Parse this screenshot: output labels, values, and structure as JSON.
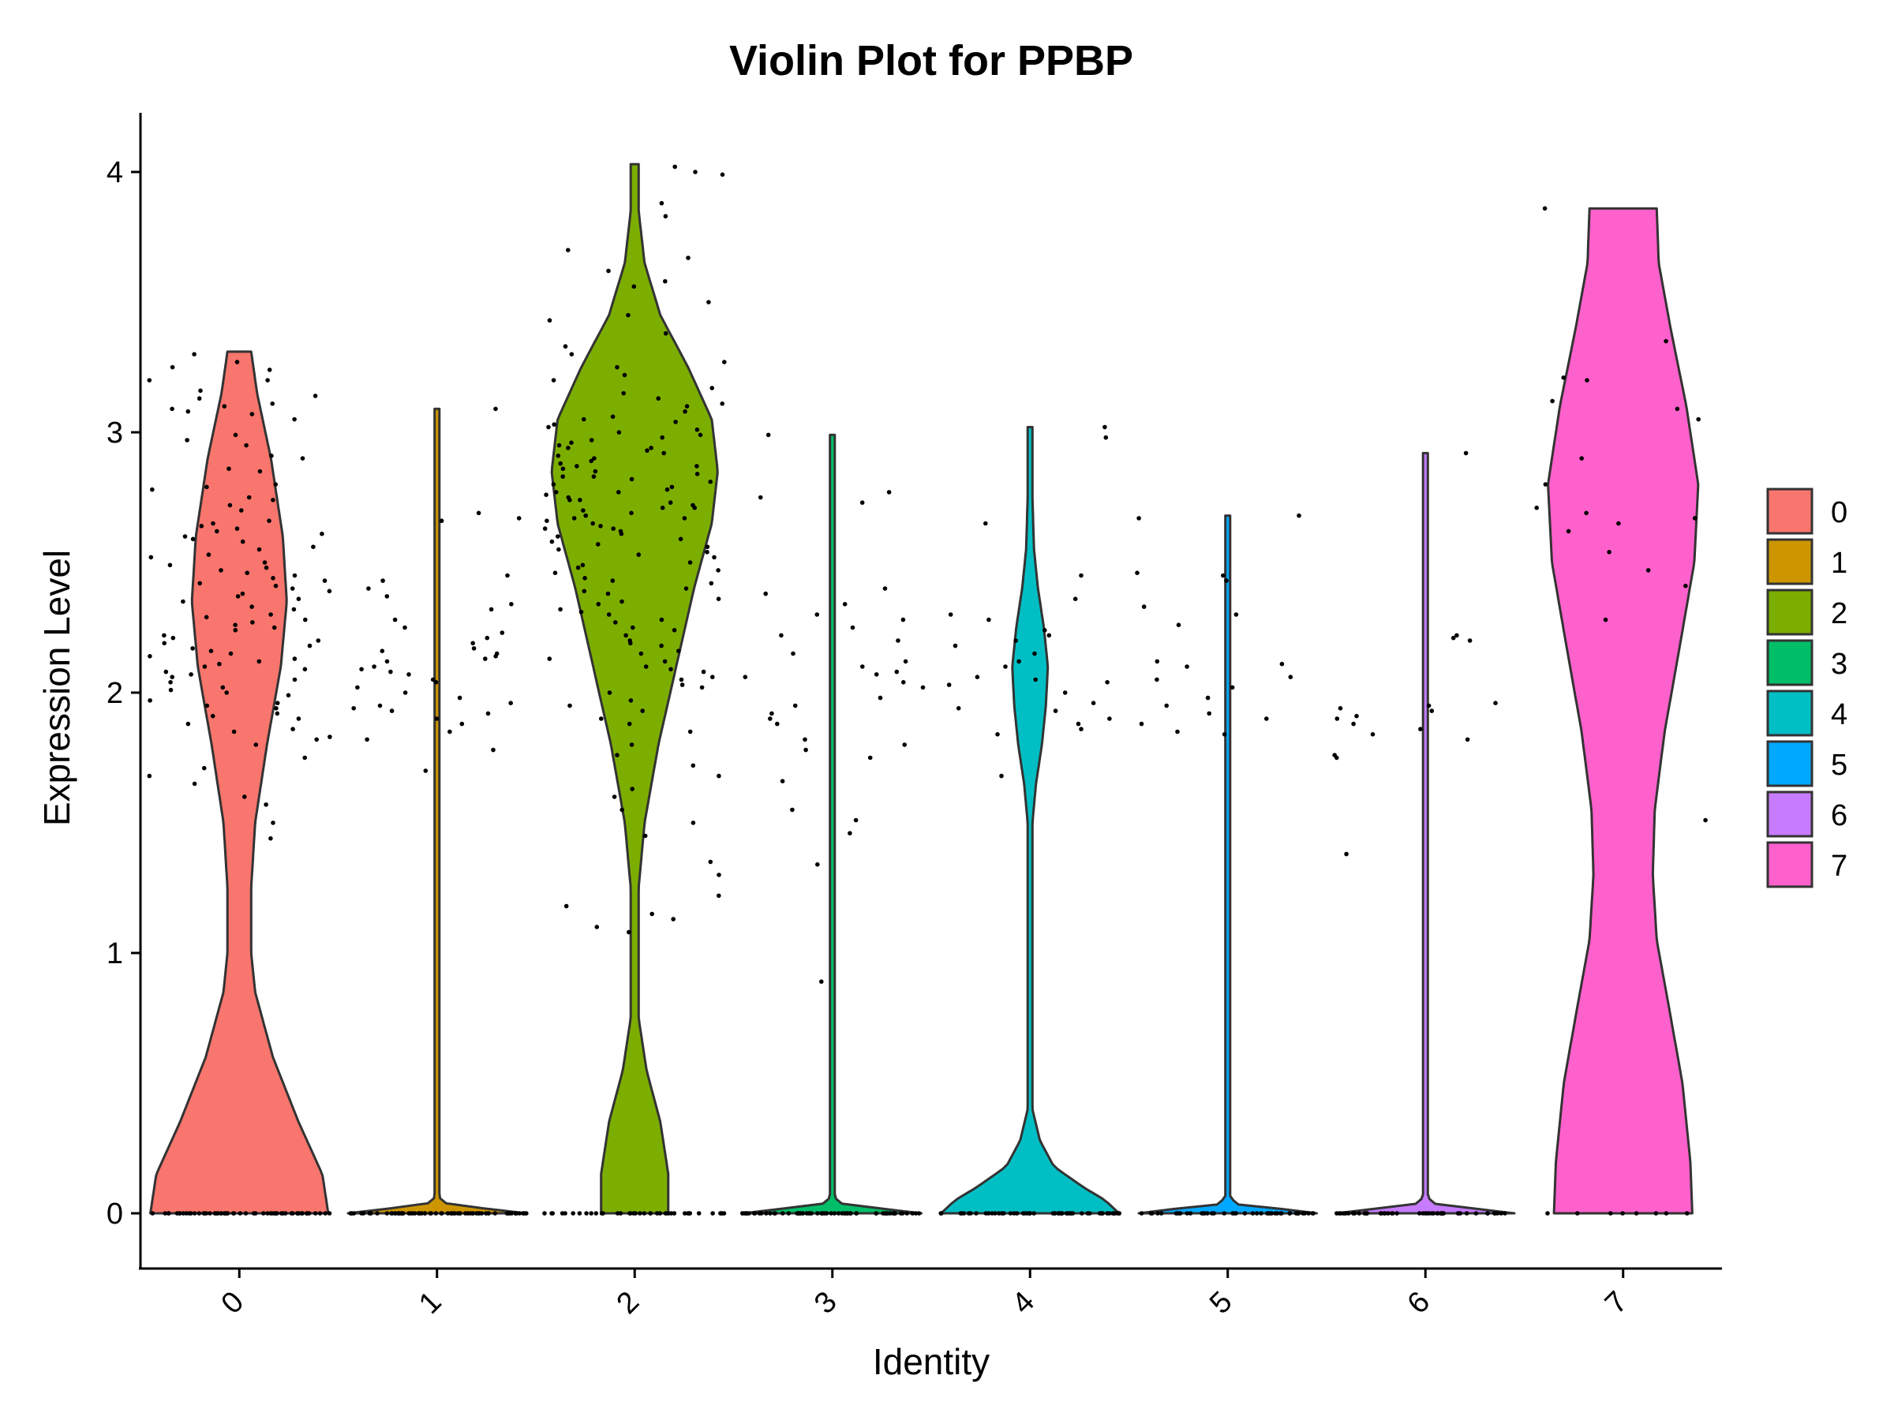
{
  "chart_data": {
    "type": "violin",
    "title": "Violin Plot for PPBP",
    "xlabel": "Identity",
    "ylabel": "Expression Level",
    "ylim": [
      -0.2,
      4.2
    ],
    "yticks": [
      "0",
      "1",
      "2",
      "3",
      "4"
    ],
    "grid": false,
    "legend_position": "right",
    "categories": [
      "0",
      "1",
      "2",
      "3",
      "4",
      "5",
      "6",
      "7"
    ],
    "colors": [
      "#F8766D",
      "#CD9600",
      "#7CAE00",
      "#00BE67",
      "#00BFC4",
      "#00A9FF",
      "#C77CFF",
      "#FF61CC"
    ],
    "series": [
      {
        "name": "0",
        "max": 3.31,
        "zero_count": 60,
        "profile": [
          [
            0,
            0.45
          ],
          [
            0.15,
            0.42
          ],
          [
            0.35,
            0.3
          ],
          [
            0.6,
            0.17
          ],
          [
            0.85,
            0.08
          ],
          [
            1.0,
            0.06
          ],
          [
            1.25,
            0.06
          ],
          [
            1.5,
            0.08
          ],
          [
            1.8,
            0.14
          ],
          [
            2.1,
            0.21
          ],
          [
            2.35,
            0.24
          ],
          [
            2.6,
            0.22
          ],
          [
            2.9,
            0.16
          ],
          [
            3.15,
            0.09
          ],
          [
            3.31,
            0.06
          ]
        ],
        "expressed": [
          3.3,
          3.25,
          3.24,
          3.2,
          3.16,
          3.13,
          3.1,
          3.08,
          3.05,
          2.99,
          2.95,
          2.9,
          2.85,
          2.8,
          2.78,
          2.75,
          2.72,
          2.7,
          2.66,
          2.64,
          2.63,
          2.61,
          2.6,
          2.58,
          2.56,
          2.55,
          2.52,
          2.5,
          2.48,
          2.47,
          2.45,
          2.44,
          2.42,
          2.4,
          2.39,
          2.37,
          2.35,
          2.33,
          2.3,
          2.28,
          2.27,
          2.25,
          2.22,
          2.2,
          2.19,
          2.17,
          2.15,
          2.13,
          2.1,
          2.09,
          2.07,
          2.05,
          2.02,
          2.0,
          1.97,
          1.95,
          1.92,
          1.9,
          1.86,
          1.83,
          1.8,
          1.75,
          1.71,
          1.68,
          1.65,
          1.6,
          1.57,
          1.5,
          1.44,
          3.27,
          3.2,
          3.14,
          3.11,
          3.09,
          3.07,
          2.97,
          2.91,
          2.86,
          2.79,
          2.74,
          2.65,
          2.62,
          2.59,
          2.53,
          2.49,
          2.46,
          2.43,
          2.41,
          2.38,
          2.36,
          2.32,
          2.29,
          2.26,
          2.24,
          2.21,
          2.18,
          2.16,
          2.14,
          2.12,
          2.11,
          2.08,
          2.06,
          2.04,
          2.01,
          1.99,
          1.96,
          1.94,
          1.91,
          1.88,
          1.85,
          1.82
        ]
      },
      {
        "name": "1",
        "max": 3.09,
        "zero_count": 70,
        "profile": [
          [
            0,
            0.45
          ],
          [
            0.012,
            0.35
          ],
          [
            0.03,
            0.06
          ],
          [
            0.06,
            0.012
          ],
          [
            3.09,
            0.012
          ]
        ],
        "expressed": [
          3.09,
          2.69,
          2.67,
          2.66,
          2.45,
          2.43,
          2.4,
          2.37,
          2.34,
          2.32,
          2.28,
          2.25,
          2.23,
          2.21,
          2.19,
          2.17,
          2.16,
          2.15,
          2.14,
          2.13,
          2.12,
          2.1,
          2.09,
          2.08,
          2.07,
          2.05,
          2.04,
          2.02,
          2.0,
          1.98,
          1.96,
          1.95,
          1.94,
          1.93,
          1.92,
          1.9,
          1.88,
          1.85,
          1.82,
          1.78,
          1.7
        ]
      },
      {
        "name": "2",
        "max": 4.03,
        "zero_count": 40,
        "profile": [
          [
            0,
            0.17
          ],
          [
            0.15,
            0.17
          ],
          [
            0.35,
            0.13
          ],
          [
            0.55,
            0.06
          ],
          [
            0.75,
            0.02
          ],
          [
            1.0,
            0.02
          ],
          [
            1.25,
            0.02
          ],
          [
            1.5,
            0.05
          ],
          [
            1.8,
            0.12
          ],
          [
            2.1,
            0.21
          ],
          [
            2.4,
            0.3
          ],
          [
            2.65,
            0.39
          ],
          [
            2.85,
            0.42
          ],
          [
            3.05,
            0.39
          ],
          [
            3.25,
            0.27
          ],
          [
            3.45,
            0.13
          ],
          [
            3.65,
            0.05
          ],
          [
            3.85,
            0.02
          ],
          [
            4.03,
            0.02
          ]
        ],
        "expressed": [
          4.02,
          4.0,
          3.99,
          3.88,
          3.83,
          3.7,
          3.67,
          3.62,
          3.58,
          3.56,
          3.5,
          3.45,
          3.43,
          3.38,
          3.33,
          3.3,
          3.27,
          3.25,
          3.22,
          3.2,
          3.17,
          3.15,
          3.13,
          3.11,
          3.1,
          3.08,
          3.06,
          3.05,
          3.04,
          3.03,
          3.02,
          3.01,
          3.0,
          2.99,
          2.98,
          2.97,
          2.96,
          2.95,
          2.94,
          2.93,
          2.92,
          2.91,
          2.9,
          2.89,
          2.88,
          2.87,
          2.86,
          2.85,
          2.84,
          2.83,
          2.82,
          2.81,
          2.8,
          2.79,
          2.78,
          2.77,
          2.76,
          2.75,
          2.74,
          2.73,
          2.72,
          2.71,
          2.7,
          2.69,
          2.68,
          2.67,
          2.66,
          2.65,
          2.64,
          2.63,
          2.62,
          2.61,
          2.6,
          2.58,
          2.56,
          2.55,
          2.53,
          2.52,
          2.5,
          2.48,
          2.46,
          2.44,
          2.42,
          2.4,
          2.38,
          2.36,
          2.34,
          2.32,
          2.3,
          2.28,
          2.25,
          2.22,
          2.2,
          2.18,
          2.15,
          2.13,
          2.1,
          2.08,
          2.05,
          2.02,
          2.0,
          1.97,
          1.95,
          1.93,
          1.9,
          1.88,
          1.85,
          1.8,
          1.76,
          1.72,
          1.68,
          1.63,
          1.6,
          1.55,
          1.5,
          1.45,
          1.35,
          1.3,
          1.22,
          1.18,
          1.15,
          1.13,
          1.1,
          1.08,
          2.94,
          2.87,
          2.83,
          2.77,
          2.74,
          2.71,
          2.67,
          2.63,
          2.59,
          2.57,
          2.54,
          2.49,
          2.47,
          2.43,
          2.39,
          2.35,
          2.31,
          2.27,
          2.24,
          2.19,
          2.16,
          2.12,
          2.09,
          2.06,
          2.03
        ]
      },
      {
        "name": "3",
        "max": 2.99,
        "zero_count": 65,
        "profile": [
          [
            0,
            0.45
          ],
          [
            0.012,
            0.35
          ],
          [
            0.03,
            0.06
          ],
          [
            0.06,
            0.012
          ],
          [
            2.99,
            0.012
          ]
        ],
        "expressed": [
          2.99,
          2.77,
          2.75,
          2.73,
          2.4,
          2.38,
          2.34,
          2.3,
          2.28,
          2.25,
          2.22,
          2.2,
          2.15,
          2.12,
          2.1,
          2.08,
          2.07,
          2.06,
          2.04,
          2.02,
          1.98,
          1.95,
          1.92,
          1.9,
          1.88,
          1.82,
          1.8,
          1.78,
          1.75,
          1.66,
          1.55,
          1.51,
          1.46,
          1.34,
          0.89
        ]
      },
      {
        "name": "4",
        "max": 3.02,
        "zero_count": 55,
        "profile": [
          [
            0,
            0.45
          ],
          [
            0.05,
            0.38
          ],
          [
            0.1,
            0.27
          ],
          [
            0.18,
            0.12
          ],
          [
            0.28,
            0.05
          ],
          [
            0.4,
            0.012
          ],
          [
            1.5,
            0.012
          ],
          [
            1.65,
            0.03
          ],
          [
            1.8,
            0.06
          ],
          [
            1.95,
            0.08
          ],
          [
            2.1,
            0.09
          ],
          [
            2.25,
            0.07
          ],
          [
            2.4,
            0.04
          ],
          [
            2.55,
            0.02
          ],
          [
            2.75,
            0.012
          ],
          [
            3.02,
            0.012
          ]
        ],
        "expressed": [
          3.02,
          2.98,
          2.65,
          2.45,
          2.36,
          2.3,
          2.28,
          2.24,
          2.22,
          2.2,
          2.18,
          2.15,
          2.12,
          2.1,
          2.06,
          2.05,
          2.04,
          2.03,
          2.0,
          1.96,
          1.94,
          1.93,
          1.9,
          1.88,
          1.86,
          1.84,
          1.68
        ]
      },
      {
        "name": "5",
        "max": 2.68,
        "zero_count": 45,
        "profile": [
          [
            0,
            0.45
          ],
          [
            0.012,
            0.35
          ],
          [
            0.03,
            0.06
          ],
          [
            0.06,
            0.012
          ],
          [
            2.68,
            0.012
          ]
        ],
        "expressed": [
          2.68,
          2.67,
          2.46,
          2.45,
          2.43,
          2.33,
          2.3,
          2.26,
          2.12,
          2.11,
          2.1,
          2.06,
          2.05,
          2.02,
          1.98,
          1.95,
          1.92,
          1.9,
          1.88,
          1.85,
          1.84
        ]
      },
      {
        "name": "6",
        "max": 2.92,
        "zero_count": 50,
        "profile": [
          [
            0,
            0.45
          ],
          [
            0.012,
            0.35
          ],
          [
            0.03,
            0.06
          ],
          [
            0.06,
            0.012
          ],
          [
            2.92,
            0.012
          ]
        ],
        "expressed": [
          2.92,
          2.22,
          2.21,
          2.2,
          1.96,
          1.95,
          1.94,
          1.93,
          1.91,
          1.9,
          1.88,
          1.86,
          1.84,
          1.82,
          1.76,
          1.75,
          1.38
        ]
      },
      {
        "name": "7",
        "max": 3.86,
        "zero_count": 8,
        "profile": [
          [
            0,
            0.35
          ],
          [
            0.2,
            0.34
          ],
          [
            0.5,
            0.3
          ],
          [
            0.8,
            0.23
          ],
          [
            1.05,
            0.17
          ],
          [
            1.3,
            0.15
          ],
          [
            1.55,
            0.16
          ],
          [
            1.85,
            0.21
          ],
          [
            2.15,
            0.28
          ],
          [
            2.5,
            0.36
          ],
          [
            2.8,
            0.38
          ],
          [
            3.1,
            0.32
          ],
          [
            3.4,
            0.24
          ],
          [
            3.65,
            0.18
          ],
          [
            3.86,
            0.17
          ]
        ],
        "expressed": [
          3.86,
          3.35,
          3.21,
          3.2,
          3.12,
          3.09,
          3.05,
          2.9,
          2.8,
          2.71,
          2.69,
          2.67,
          2.65,
          2.62,
          2.54,
          2.47,
          2.41,
          2.28,
          1.51
        ]
      }
    ]
  }
}
